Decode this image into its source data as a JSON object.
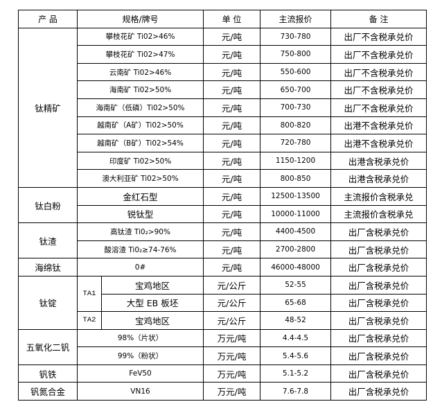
{
  "headers": {
    "product": "产  品",
    "spec": "规格/牌号",
    "unit": "单 位",
    "price": "主流报价",
    "note": "备  注"
  },
  "groups": [
    {
      "product": "钛精矿",
      "rows": [
        {
          "spec": "攀枝花矿 Ti02>46%",
          "unit": "元/吨",
          "price": "730-780",
          "note": "出厂不含税承兑价"
        },
        {
          "spec": "攀枝花矿 Ti02>47%",
          "unit": "元/吨",
          "price": "750-800",
          "note": "出厂不含税承兑价"
        },
        {
          "spec": "云南矿 Ti02>46%",
          "unit": "元/吨",
          "price": "550-600",
          "note": "出厂不含税承兑价"
        },
        {
          "spec": "海南矿 Ti02>50%",
          "unit": "元/吨",
          "price": "650-700",
          "note": "出厂不含税承兑价"
        },
        {
          "spec": "海南矿（低磷）Ti02>50%",
          "unit": "元/吨",
          "price": "700-730",
          "note": "出厂不含税承兑价"
        },
        {
          "spec": "越南矿（A矿）Ti02>50%",
          "unit": "元/吨",
          "price": "800-820",
          "note": "出港不含税承兑价"
        },
        {
          "spec": "越南矿（B矿）Ti02>54%",
          "unit": "元/吨",
          "price": "720-780",
          "note": "出港不含税承兑价"
        },
        {
          "spec": "印度矿 Ti02>50%",
          "unit": "元/吨",
          "price": "1150-1200",
          "note": "出港含税承兑价"
        },
        {
          "spec": "澳大利亚矿 Ti02>50%",
          "unit": "元/吨",
          "price": "800-850",
          "note": "出港含税承兑价"
        }
      ]
    },
    {
      "product": "钛白粉",
      "rows": [
        {
          "spec": "金红石型",
          "unit": "元/吨",
          "price": "12500-13500",
          "note": "主流报价含税承兑"
        },
        {
          "spec": "锐钛型",
          "unit": "元/吨",
          "price": "10000-11000",
          "note": "主流报价含税承兑"
        }
      ]
    },
    {
      "product": "钛渣",
      "rows": [
        {
          "spec": "高钛渣 Ti0₂>90%",
          "unit": "元/吨",
          "price": "4400-4500",
          "note": "出厂含税承兑价"
        },
        {
          "spec": "酸溶渣 Ti0₂≥74-76%",
          "unit": "元/吨",
          "price": "2700-2800",
          "note": "出厂含税承兑价"
        }
      ]
    },
    {
      "product": "海绵钛",
      "rows": [
        {
          "spec": "0#",
          "unit": "元/吨",
          "price": "46000-48000",
          "note": "出厂含税承兑价"
        }
      ]
    },
    {
      "product": "钛锭",
      "rows": [
        {
          "grade": "TA1",
          "spec": "宝鸡地区",
          "unit": "元/公斤",
          "price": "52-55",
          "note": "出厂含税承兑价"
        },
        {
          "spec": "大型 EB 板坯",
          "unit": "元/公斤",
          "price": "65-68",
          "note": "出厂含税承兑价"
        },
        {
          "grade": "TA2",
          "spec": "宝鸡地区",
          "unit": "元/公斤",
          "price": "48-52",
          "note": "出厂含税承兑价"
        }
      ]
    },
    {
      "product": "五氧化二钒",
      "rows": [
        {
          "spec": "98%（片状）",
          "unit": "万元/吨",
          "price": "4.4-4.5",
          "note": "出厂含税承兑价"
        },
        {
          "spec": "99%（粉状）",
          "unit": "万元/吨",
          "price": "5.4-5.6",
          "note": "出厂含税承兑价"
        }
      ]
    },
    {
      "product": "钒铁",
      "rows": [
        {
          "spec": "FeV50",
          "unit": "万元/吨",
          "price": "5.1-5.2",
          "note": "出厂含税承兑价"
        }
      ]
    },
    {
      "product": "钒氮合金",
      "rows": [
        {
          "spec": "VN16",
          "unit": "万元/吨",
          "price": "7.6-7.8",
          "note": "出厂含税承兑价"
        }
      ]
    }
  ]
}
